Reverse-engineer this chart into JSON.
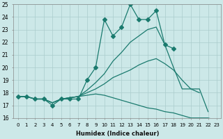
{
  "xlabel": "Humidex (Indice chaleur)",
  "bg_color": "#cce8e8",
  "grid_color": "#aacccc",
  "line_color": "#1a7a6e",
  "xlim": [
    -0.5,
    23.5
  ],
  "ylim": [
    16,
    25
  ],
  "xticks": [
    0,
    1,
    2,
    3,
    4,
    5,
    6,
    7,
    8,
    9,
    10,
    11,
    12,
    13,
    14,
    15,
    16,
    17,
    18,
    19,
    20,
    21,
    22,
    23
  ],
  "yticks": [
    16,
    17,
    18,
    19,
    20,
    21,
    22,
    23,
    24,
    25
  ],
  "series": [
    [
      17.7,
      17.7,
      17.5,
      17.5,
      17.0,
      17.5,
      17.5,
      17.5,
      19.0,
      20.0,
      23.8,
      22.5,
      23.2,
      25.0,
      23.8,
      23.8,
      24.5,
      21.8,
      21.5,
      null,
      null,
      null,
      null,
      null
    ],
    [
      17.7,
      17.7,
      17.5,
      17.5,
      17.2,
      17.5,
      17.6,
      17.7,
      18.2,
      18.8,
      19.5,
      20.5,
      21.2,
      22.0,
      22.5,
      23.0,
      23.2,
      21.8,
      20.0,
      18.3,
      18.3,
      18.0,
      null,
      null
    ],
    [
      17.7,
      17.7,
      17.5,
      17.5,
      17.2,
      17.5,
      17.6,
      17.7,
      18.0,
      18.3,
      18.7,
      19.2,
      19.5,
      19.8,
      20.2,
      20.5,
      20.7,
      20.3,
      19.8,
      19.0,
      18.3,
      18.3,
      16.5,
      null
    ],
    [
      17.7,
      17.7,
      17.5,
      17.5,
      17.2,
      17.5,
      17.6,
      17.7,
      17.8,
      17.9,
      17.8,
      17.6,
      17.4,
      17.2,
      17.0,
      16.8,
      16.7,
      16.5,
      16.4,
      16.2,
      16.0,
      16.0,
      16.0,
      15.8
    ]
  ],
  "marker_series": [
    0
  ],
  "marker_size": 3,
  "linewidth": 0.9
}
